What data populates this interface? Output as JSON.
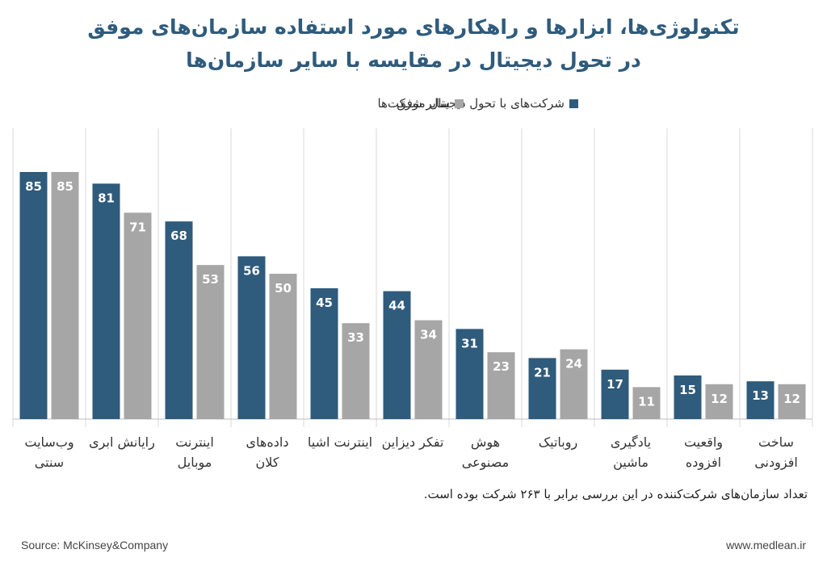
{
  "title_line1": "تکنولوژی‌ها، ابزارها و راهکارهای مورد استفاده سازمان‌های موفق",
  "title_line2": "در تحول دیجیتال در مقایسه با سایر سازمان‌ها",
  "footnote": "تعداد سازمان‌های شرکت‌کننده در این بررسی برابر با ۲۶۳ شرکت بوده است.",
  "source": "Source: McKinsey&Company",
  "website": "www.medlean.ir",
  "colors": {
    "successful": "#2f5b7c",
    "others": "#a6a6a6",
    "grid": "#d9d9d9"
  },
  "chart_data": {
    "type": "bar",
    "categories": [
      [
        "وب‌سایت",
        "سنتی"
      ],
      [
        "رایانش ابری"
      ],
      [
        "اینترنت",
        "موبایل"
      ],
      [
        "داده‌های",
        "کلان"
      ],
      [
        "اینترنت اشیا"
      ],
      [
        "تفکر دیزاین"
      ],
      [
        "هوش",
        "مصنوعی"
      ],
      [
        "روباتیک"
      ],
      [
        "یادگیری",
        "ماشین"
      ],
      [
        "واقعیت",
        "افزوده"
      ],
      [
        "ساخت",
        "افزودنی"
      ]
    ],
    "series": [
      {
        "name": "شرکت‌های با تحول دیجیتال موفق",
        "values": [
          85,
          81,
          68,
          56,
          45,
          44,
          31,
          21,
          17,
          15,
          13
        ]
      },
      {
        "name": "سایر شرکت‌ها",
        "values": [
          85,
          71,
          53,
          50,
          33,
          34,
          23,
          24,
          11,
          12,
          12
        ]
      }
    ],
    "ylim": [
      0,
      100
    ],
    "grid": false,
    "legend": "top"
  }
}
